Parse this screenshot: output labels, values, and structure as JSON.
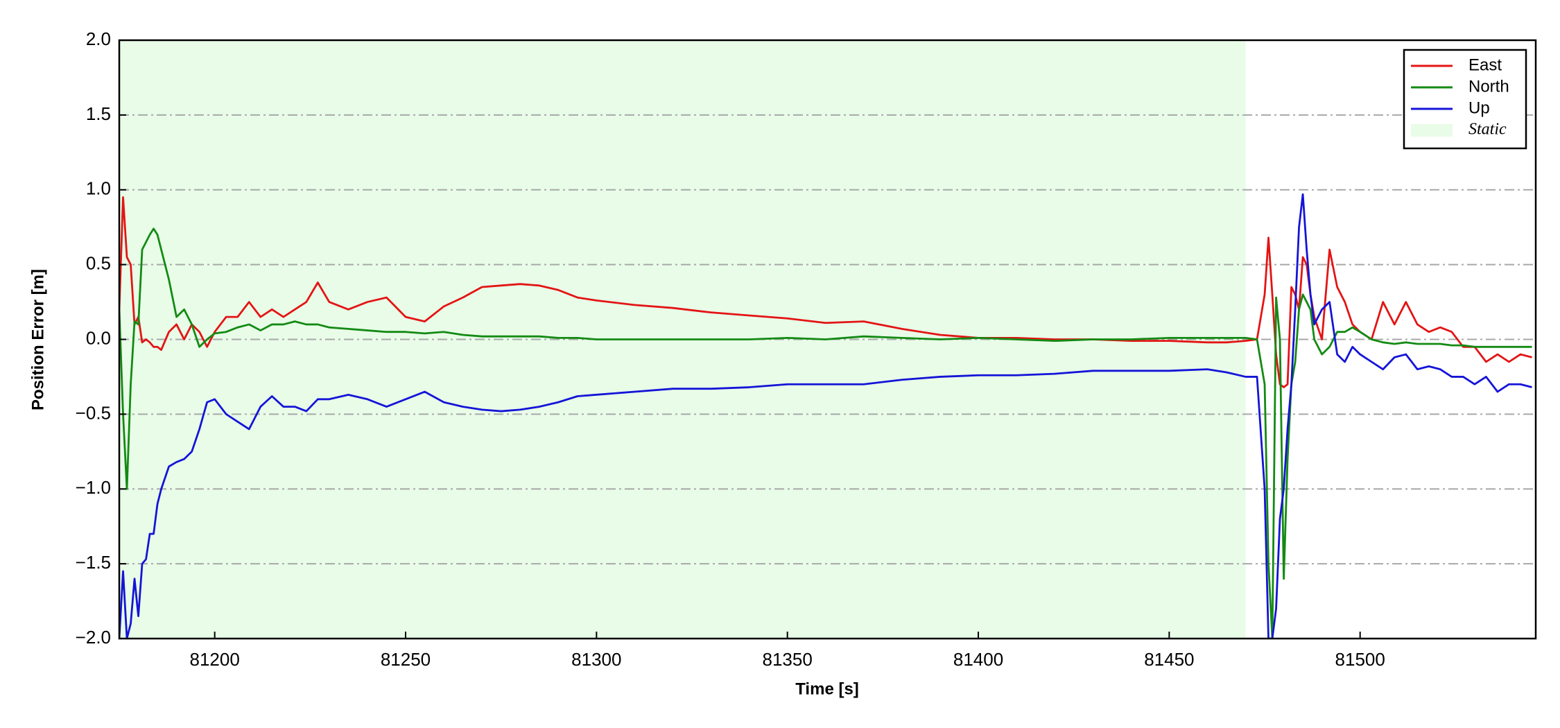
{
  "chart_data": {
    "type": "line",
    "xlabel": "Time [s]",
    "ylabel": "Position Error [m]",
    "xlim": [
      81175,
      81546
    ],
    "ylim": [
      -2.0,
      2.0
    ],
    "xticks": [
      81200,
      81250,
      81300,
      81350,
      81400,
      81450,
      81500
    ],
    "yticks": [
      {
        "value": -2.0,
        "label": "−2.0"
      },
      {
        "value": -1.5,
        "label": "−1.5"
      },
      {
        "value": -1.0,
        "label": "−1.0"
      },
      {
        "value": -0.5,
        "label": "−0.5"
      },
      {
        "value": 0.0,
        "label": "0.0"
      },
      {
        "value": 0.5,
        "label": "0.5"
      },
      {
        "value": 1.0,
        "label": "1.0"
      },
      {
        "value": 1.5,
        "label": "1.5"
      },
      {
        "value": 2.0,
        "label": "2.0"
      }
    ],
    "grid": true,
    "legend": "upper right",
    "static_span": {
      "name": "Static",
      "x": [
        81175,
        81470
      ],
      "color": "#e8fce8"
    },
    "x": [
      81175,
      81176,
      81177,
      81178,
      81179,
      81180,
      81181,
      81182,
      81183,
      81184,
      81185,
      81186,
      81188,
      81190,
      81192,
      81194,
      81196,
      81198,
      81200,
      81203,
      81206,
      81209,
      81212,
      81215,
      81218,
      81221,
      81224,
      81227,
      81230,
      81235,
      81240,
      81245,
      81250,
      81255,
      81260,
      81265,
      81270,
      81275,
      81280,
      81285,
      81290,
      81295,
      81300,
      81310,
      81320,
      81330,
      81340,
      81350,
      81360,
      81370,
      81380,
      81390,
      81400,
      81410,
      81420,
      81430,
      81440,
      81450,
      81460,
      81465,
      81470,
      81473,
      81475,
      81476,
      81477,
      81478,
      81479,
      81480,
      81481,
      81482,
      81483,
      81484,
      81485,
      81486,
      81487,
      81488,
      81490,
      81492,
      81494,
      81496,
      81498,
      81500,
      81503,
      81506,
      81509,
      81512,
      81515,
      81518,
      81521,
      81524,
      81527,
      81530,
      81533,
      81536,
      81539,
      81542,
      81545
    ],
    "series": [
      {
        "name": "East",
        "color": "#e41414",
        "values": [
          0.2,
          0.95,
          0.55,
          0.5,
          0.1,
          0.15,
          -0.02,
          0.0,
          -0.02,
          -0.05,
          -0.05,
          -0.07,
          0.05,
          0.1,
          0.0,
          0.1,
          0.05,
          -0.05,
          0.05,
          0.15,
          0.15,
          0.25,
          0.15,
          0.2,
          0.15,
          0.2,
          0.25,
          0.38,
          0.25,
          0.2,
          0.25,
          0.28,
          0.15,
          0.12,
          0.22,
          0.28,
          0.35,
          0.36,
          0.37,
          0.36,
          0.33,
          0.28,
          0.26,
          0.23,
          0.21,
          0.18,
          0.16,
          0.14,
          0.11,
          0.12,
          0.07,
          0.03,
          0.01,
          0.01,
          0.0,
          0.0,
          -0.01,
          -0.01,
          -0.02,
          -0.02,
          -0.01,
          0.0,
          0.3,
          0.68,
          0.3,
          -0.1,
          -0.3,
          -0.32,
          -0.3,
          0.35,
          0.3,
          0.2,
          0.55,
          0.5,
          0.3,
          0.15,
          0.0,
          0.6,
          0.35,
          0.25,
          0.1,
          0.05,
          0.0,
          0.25,
          0.1,
          0.25,
          0.1,
          0.05,
          0.08,
          0.05,
          -0.05,
          -0.05,
          -0.15,
          -0.1,
          -0.15,
          -0.1,
          -0.12
        ]
      },
      {
        "name": "North",
        "color": "#138a13",
        "values": [
          0.2,
          -0.5,
          -1.0,
          -0.3,
          0.12,
          0.1,
          0.6,
          0.65,
          0.7,
          0.74,
          0.7,
          0.6,
          0.4,
          0.15,
          0.2,
          0.1,
          -0.05,
          0.0,
          0.04,
          0.05,
          0.08,
          0.1,
          0.06,
          0.1,
          0.1,
          0.12,
          0.1,
          0.1,
          0.08,
          0.07,
          0.06,
          0.05,
          0.05,
          0.04,
          0.05,
          0.03,
          0.02,
          0.02,
          0.02,
          0.02,
          0.01,
          0.01,
          0.0,
          0.0,
          0.0,
          0.0,
          0.0,
          0.01,
          0.0,
          0.02,
          0.01,
          0.0,
          0.01,
          0.0,
          -0.01,
          0.0,
          0.0,
          0.01,
          0.01,
          0.01,
          0.01,
          0.0,
          -0.3,
          -1.5,
          -2.0,
          0.28,
          0.0,
          -1.6,
          -0.8,
          -0.3,
          -0.15,
          0.2,
          0.3,
          0.25,
          0.2,
          0.0,
          -0.1,
          -0.05,
          0.05,
          0.05,
          0.08,
          0.05,
          0.0,
          -0.02,
          -0.03,
          -0.02,
          -0.03,
          -0.03,
          -0.03,
          -0.04,
          -0.04,
          -0.05,
          -0.05,
          -0.05,
          -0.05,
          -0.05,
          -0.05
        ]
      },
      {
        "name": "Up",
        "color": "#1414d8",
        "values": [
          -2.0,
          -1.55,
          -2.0,
          -1.9,
          -1.6,
          -1.85,
          -1.5,
          -1.47,
          -1.3,
          -1.3,
          -1.1,
          -1.0,
          -0.85,
          -0.82,
          -0.8,
          -0.75,
          -0.6,
          -0.42,
          -0.4,
          -0.5,
          -0.55,
          -0.6,
          -0.45,
          -0.38,
          -0.45,
          -0.45,
          -0.48,
          -0.4,
          -0.4,
          -0.37,
          -0.4,
          -0.45,
          -0.4,
          -0.35,
          -0.42,
          -0.45,
          -0.47,
          -0.48,
          -0.47,
          -0.45,
          -0.42,
          -0.38,
          -0.37,
          -0.35,
          -0.33,
          -0.33,
          -0.32,
          -0.3,
          -0.3,
          -0.3,
          -0.27,
          -0.25,
          -0.24,
          -0.24,
          -0.23,
          -0.21,
          -0.21,
          -0.21,
          -0.2,
          -0.22,
          -0.25,
          -0.25,
          -1.0,
          -2.0,
          -2.0,
          -1.8,
          -1.2,
          -1.0,
          -0.6,
          -0.3,
          0.2,
          0.75,
          0.97,
          0.6,
          0.3,
          0.1,
          0.2,
          0.25,
          -0.1,
          -0.15,
          -0.05,
          -0.1,
          -0.15,
          -0.2,
          -0.12,
          -0.1,
          -0.2,
          -0.18,
          -0.2,
          -0.25,
          -0.25,
          -0.3,
          -0.25,
          -0.35,
          -0.3,
          -0.3,
          -0.32
        ]
      }
    ]
  }
}
